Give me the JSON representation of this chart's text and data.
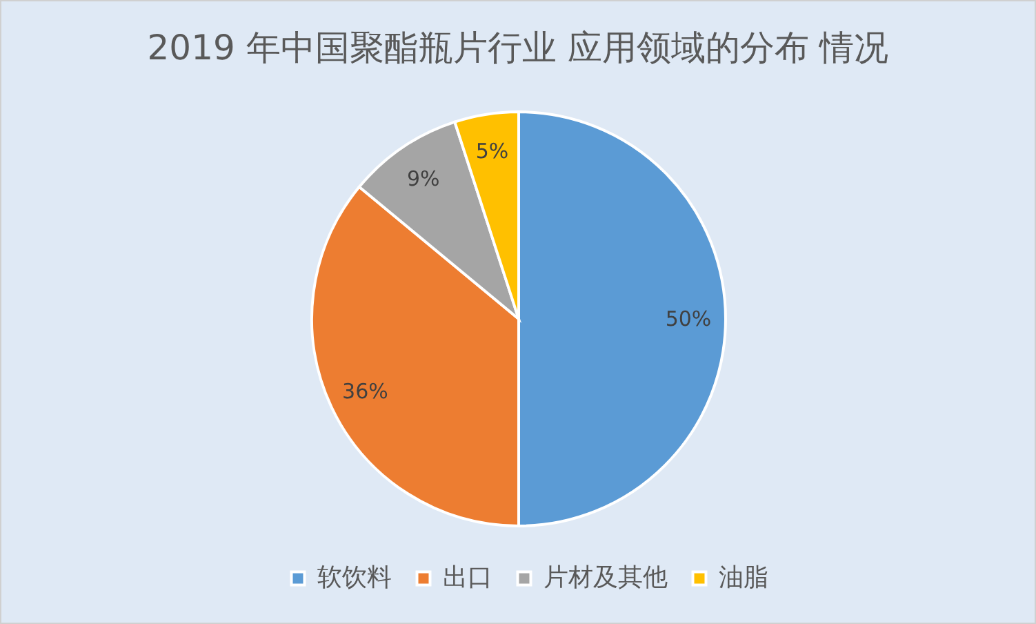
{
  "chart_data": {
    "type": "pie",
    "title": "2019 年中国聚酯瓶片行业 应用领域的分布 情况",
    "categories": [
      "软饮料",
      "出口",
      "片材及其他",
      "油脂"
    ],
    "values": [
      50,
      36,
      9,
      5
    ],
    "colors": [
      "#5b9bd5",
      "#ed7d31",
      "#a5a5a5",
      "#ffc000"
    ],
    "value_labels": [
      "50%",
      "36%",
      "9%",
      "5%"
    ],
    "legend": "bottom"
  }
}
